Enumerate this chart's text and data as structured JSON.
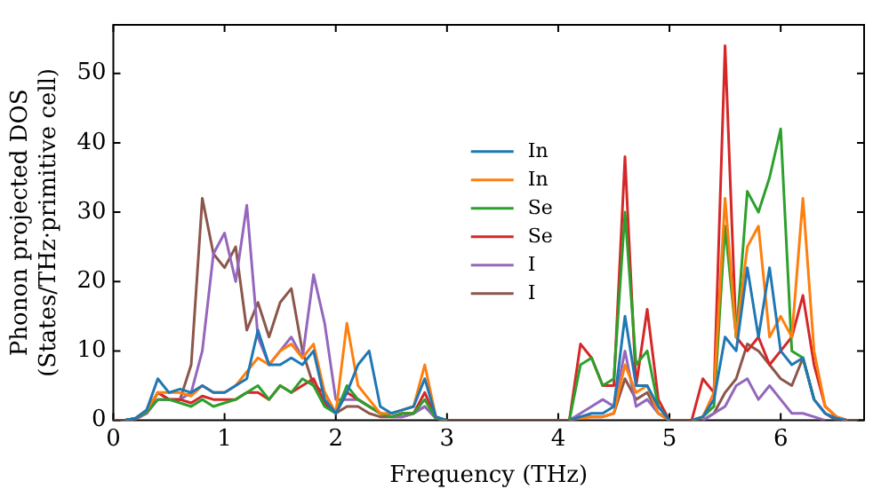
{
  "chart_data": {
    "type": "line",
    "xlabel": "Frequency (THz)",
    "ylabel": "Phonon projected DOS\n(States/THz·primitive cell)",
    "x": [
      0,
      0.1,
      0.2,
      0.3,
      0.4,
      0.5,
      0.6,
      0.7,
      0.8,
      0.9,
      1,
      1.1,
      1.2,
      1.3,
      1.4,
      1.5,
      1.6,
      1.7,
      1.8,
      1.9,
      2,
      2.1,
      2.2,
      2.3,
      2.4,
      2.5,
      2.6,
      2.7,
      2.8,
      2.9,
      3,
      3.1,
      3.2,
      3.3,
      3.4,
      3.5,
      3.6,
      3.7,
      3.8,
      3.9,
      4,
      4.1,
      4.2,
      4.3,
      4.4,
      4.5,
      4.6,
      4.7,
      4.8,
      4.9,
      5,
      5.1,
      5.2,
      5.3,
      5.4,
      5.5,
      5.6,
      5.7,
      5.8,
      5.9,
      6,
      6.1,
      6.2,
      6.3,
      6.4,
      6.5,
      6.6,
      6.7
    ],
    "series": [
      {
        "name": "In",
        "color": "#1f77b4",
        "values": [
          null,
          0,
          0.3,
          1.5,
          6,
          4,
          4.5,
          4,
          5,
          4,
          4,
          5,
          6,
          13,
          8,
          8,
          9,
          8,
          10,
          3,
          1,
          4,
          8,
          10,
          2,
          1,
          1.5,
          2,
          6,
          0.5,
          0,
          null,
          null,
          null,
          null,
          null,
          null,
          null,
          null,
          null,
          null,
          0,
          0.5,
          1,
          1,
          2,
          15,
          5,
          5,
          2,
          0,
          null,
          0,
          0.5,
          3,
          12,
          10,
          22,
          12,
          22,
          10,
          8,
          9,
          3,
          1,
          0.3,
          0,
          null
        ]
      },
      {
        "name": "In",
        "color": "#ff7f0e",
        "values": [
          null,
          null,
          0.3,
          1.5,
          4,
          4,
          4,
          3.5,
          5,
          4,
          4,
          5,
          7,
          9,
          8,
          10,
          11,
          9,
          11,
          4,
          1,
          14,
          5,
          3,
          1,
          1,
          1.5,
          2,
          8,
          0.5,
          0,
          null,
          null,
          null,
          null,
          null,
          null,
          null,
          null,
          null,
          null,
          0,
          0.3,
          0.5,
          0.5,
          1,
          8,
          4,
          5,
          1,
          0,
          null,
          0,
          0.5,
          4,
          32,
          12,
          25,
          28,
          12,
          15,
          12,
          32,
          10,
          2,
          0.5,
          0,
          null
        ]
      },
      {
        "name": "Se",
        "color": "#2ca02c",
        "values": [
          null,
          0,
          0.3,
          1.2,
          3,
          3,
          2.5,
          2,
          3,
          2,
          2.5,
          3,
          4,
          5,
          3,
          5,
          4,
          6,
          5,
          2,
          1,
          5,
          3,
          2,
          1,
          0.5,
          1,
          1,
          3,
          0.3,
          0,
          null,
          null,
          null,
          null,
          null,
          null,
          null,
          null,
          null,
          null,
          0,
          8,
          9,
          5,
          6,
          30,
          8,
          10,
          2,
          0,
          null,
          0,
          0.5,
          2,
          28,
          12,
          33,
          30,
          35,
          42,
          10,
          9,
          3,
          null,
          null,
          null,
          null
        ]
      },
      {
        "name": "Se",
        "color": "#d62728",
        "values": [
          null,
          0,
          0.3,
          1.2,
          4,
          3,
          3,
          2.5,
          3.5,
          3,
          3,
          3,
          4,
          4,
          3,
          5,
          4,
          5,
          6,
          2.5,
          1,
          4,
          3,
          2,
          1,
          0.5,
          1,
          1,
          4,
          0.3,
          0,
          null,
          null,
          null,
          null,
          null,
          null,
          null,
          null,
          null,
          null,
          0,
          11,
          9,
          5,
          5,
          38,
          5,
          16,
          3,
          0,
          null,
          0,
          6,
          4,
          54,
          12,
          10,
          12,
          8,
          10,
          12,
          18,
          8,
          2,
          0.5,
          0,
          null
        ]
      },
      {
        "name": "I",
        "color": "#9467bd",
        "values": [
          null,
          0,
          0.2,
          1,
          3,
          3,
          3,
          4,
          10,
          24,
          27,
          20,
          31,
          12,
          8,
          10,
          12,
          9,
          21,
          14,
          3,
          3,
          3,
          2,
          1,
          0.5,
          0.5,
          1,
          2,
          0.3,
          0,
          null,
          null,
          null,
          null,
          null,
          null,
          null,
          null,
          null,
          null,
          0,
          1,
          2,
          3,
          2,
          10,
          2,
          3,
          1,
          0,
          null,
          null,
          0,
          1,
          2,
          5,
          6,
          3,
          5,
          3,
          1,
          1,
          0.5,
          0,
          null,
          null,
          null
        ]
      },
      {
        "name": "I",
        "color": "#8c564b",
        "values": [
          0,
          0,
          0.2,
          1,
          4,
          3,
          3,
          8,
          32,
          24,
          22,
          25,
          13,
          17,
          12,
          17,
          19,
          10,
          5,
          4,
          1,
          2,
          2,
          1,
          0.5,
          0.5,
          0.5,
          1,
          2,
          0.3,
          0,
          0,
          0,
          0,
          0,
          0,
          0,
          0,
          0,
          0,
          0,
          0,
          0.5,
          0.5,
          0.5,
          1,
          6,
          3,
          4,
          1,
          0,
          0,
          0,
          0,
          1,
          4,
          6,
          11,
          10,
          8,
          6,
          5,
          9,
          3,
          1,
          0,
          0,
          0
        ]
      }
    ],
    "xlim": [
      0,
      6.75
    ],
    "xticks": [
      0,
      1,
      2,
      3,
      4,
      5,
      6
    ],
    "ylim": [
      0,
      57
    ],
    "yticks": [
      0,
      10,
      20,
      30,
      40,
      50
    ],
    "grid": false,
    "legend": "center",
    "marker": "none",
    "line_style": "solid"
  }
}
